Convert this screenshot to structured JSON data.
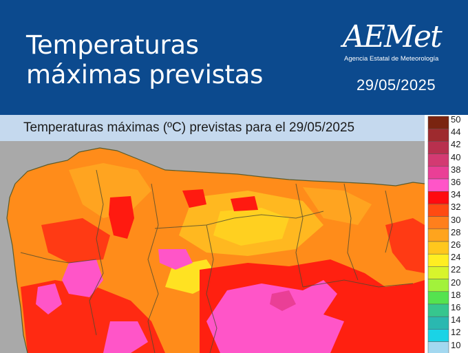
{
  "header": {
    "title_line1": "Temperaturas",
    "title_line2": "máximas previstas",
    "logo_text": "AEMet",
    "logo_subtitle": "Agencia Estatal de Meteorología",
    "date": "29/05/2025"
  },
  "map": {
    "title": "Temperaturas máximas (ºC) previstas para el 29/05/2025",
    "background_color": "#a9a9a9",
    "title_bar_color": "#c5d9ee"
  },
  "legend": {
    "entries": [
      {
        "label": "50",
        "color": "#7a2410"
      },
      {
        "label": "44",
        "color": "#9e2a2e"
      },
      {
        "label": "42",
        "color": "#b8304e"
      },
      {
        "label": "40",
        "color": "#d33a72"
      },
      {
        "label": "38",
        "color": "#ea3f96"
      },
      {
        "label": "36",
        "color": "#ff55c8"
      },
      {
        "label": "34",
        "color": "#ff0a10"
      },
      {
        "label": "32",
        "color": "#ff4a12"
      },
      {
        "label": "30",
        "color": "#ff7f1c"
      },
      {
        "label": "28",
        "color": "#ffa41d"
      },
      {
        "label": "26",
        "color": "#ffc71d"
      },
      {
        "label": "24",
        "color": "#ffee22"
      },
      {
        "label": "22",
        "color": "#d8f42c"
      },
      {
        "label": "20",
        "color": "#a2f23b"
      },
      {
        "label": "18",
        "color": "#55e34f"
      },
      {
        "label": "16",
        "color": "#36c68e"
      },
      {
        "label": "14",
        "color": "#2ab8b0"
      },
      {
        "label": "12",
        "color": "#1ad3e6"
      },
      {
        "label": "10",
        "color": "#a3d8f0"
      }
    ]
  }
}
